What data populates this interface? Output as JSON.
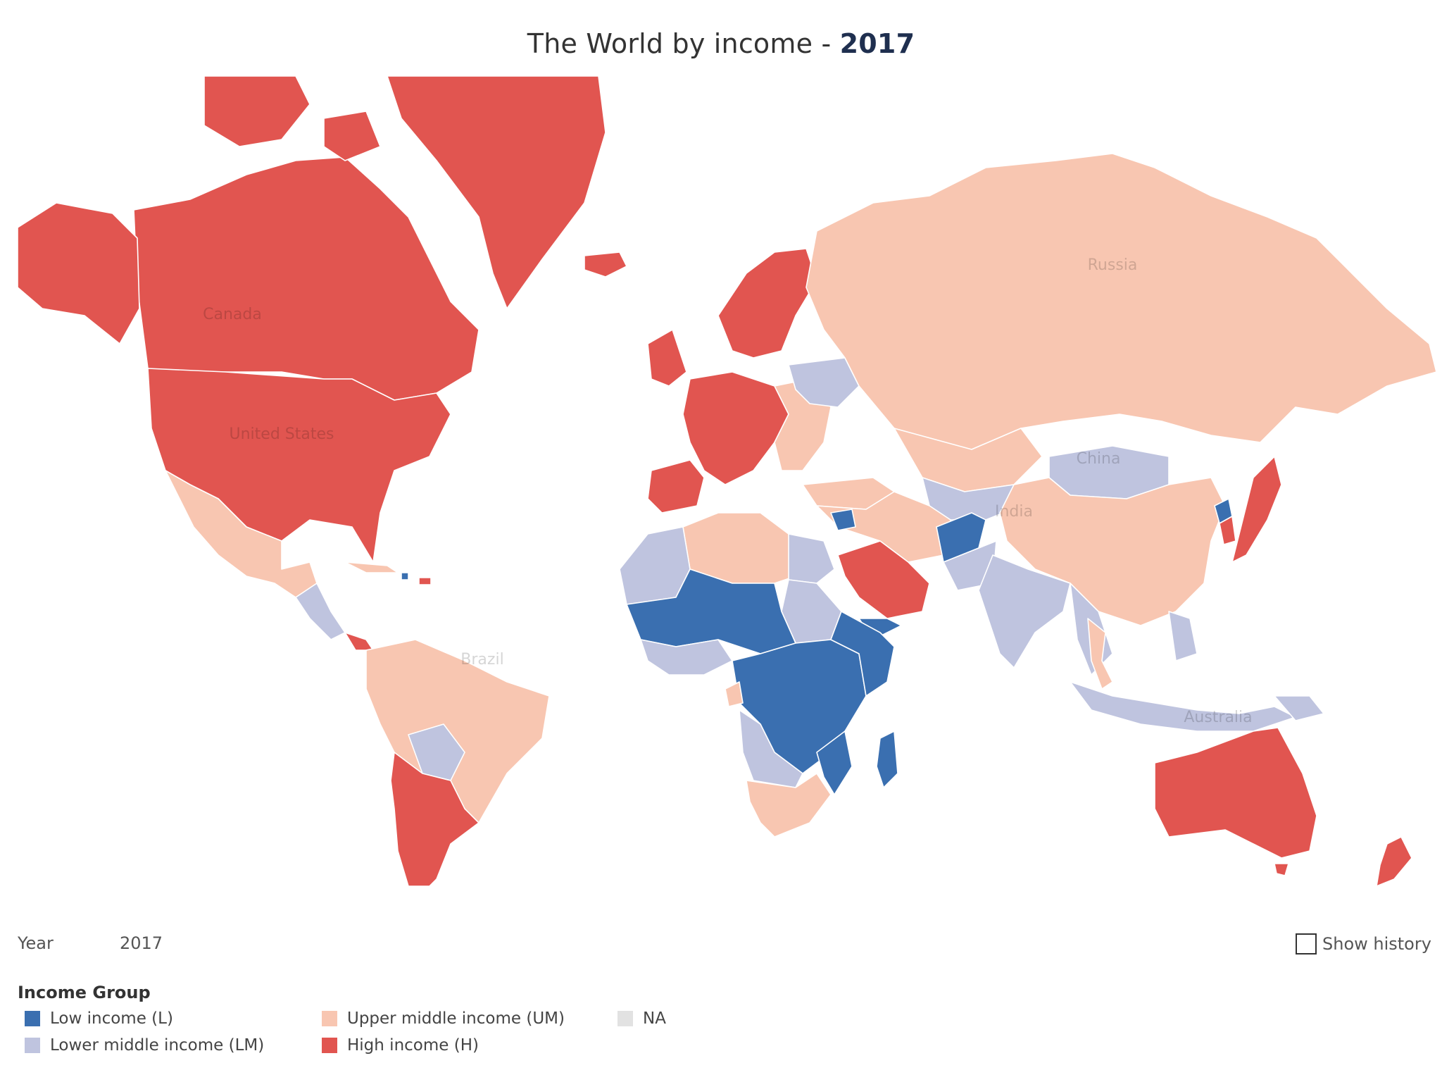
{
  "title": {
    "prefix": "The World by income - ",
    "year": "2017"
  },
  "controls": {
    "year_label": "Year",
    "year_value": "2017",
    "show_history_label": "Show history",
    "show_history_checked": false
  },
  "legend": {
    "title": "Income Group",
    "items": [
      {
        "label": "Low income (L)",
        "color": "#3a6fb0"
      },
      {
        "label": "Upper middle income (UM)",
        "color": "#f8c6b1"
      },
      {
        "label": "NA",
        "color": "#e2e2e2"
      },
      {
        "label": "Lower middle income (LM)",
        "color": "#bfc4df"
      },
      {
        "label": "High income (H)",
        "color": "#e15550"
      }
    ]
  },
  "colors": {
    "L": "#3a6fb0",
    "LM": "#bfc4df",
    "UM": "#f8c6b1",
    "H": "#e15550",
    "NA": "#e2e2e2"
  },
  "map_labels": {
    "canada": "Canada",
    "united_states": "United States",
    "russia": "Russia",
    "china": "China",
    "india": "India",
    "brazil": "Brazil",
    "australia": "Australia"
  }
}
